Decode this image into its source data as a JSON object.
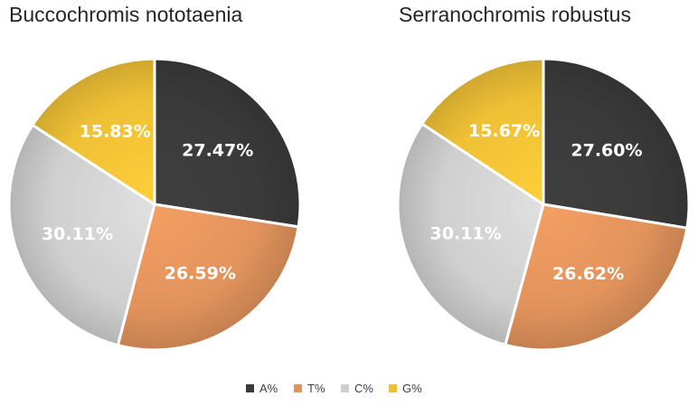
{
  "chart_data": [
    {
      "type": "pie",
      "title": "Buccochromis nototaenia",
      "categories": [
        "A%",
        "T%",
        "C%",
        "G%"
      ],
      "values": [
        27.47,
        26.59,
        30.11,
        15.83
      ],
      "labels": [
        "27.47%",
        "26.59%",
        "30.11%",
        "15.83%"
      ]
    },
    {
      "type": "pie",
      "title": "Serranochromis robustus",
      "categories": [
        "A%",
        "T%",
        "C%",
        "G%"
      ],
      "values": [
        27.6,
        26.62,
        30.11,
        15.67
      ],
      "labels": [
        "27.60%",
        "26.62%",
        "30.11%",
        "15.67%"
      ]
    }
  ],
  "legend": {
    "placement": "bottom-center",
    "items": [
      {
        "label": "A%",
        "color": "#3a3a3a"
      },
      {
        "label": "T%",
        "color": "#e2935c"
      },
      {
        "label": "C%",
        "color": "#cfcfcf"
      },
      {
        "label": "G%",
        "color": "#eec035"
      }
    ]
  }
}
